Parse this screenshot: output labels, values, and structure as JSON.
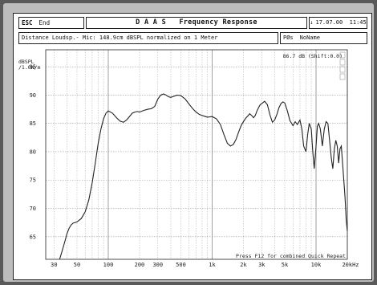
{
  "header": {
    "esc_key": "ESC",
    "end_label": "End",
    "title": "D A A S   Frequency Response",
    "date_time": "17.07.00  11:45",
    "description": "Distance Loudsp.- Mic: 148.9cm dBSPL normalized on 1 Meter",
    "file_code": "PØs",
    "file_name": "NoName"
  },
  "chart_data": {
    "type": "line",
    "title": "",
    "xlabel": "",
    "ylabel": "dBSPL\n/1.0W/m",
    "xscale": "log",
    "xlim": [
      25,
      20000
    ],
    "ylim": [
      61,
      98
    ],
    "grid": true,
    "x_tick_labels": [
      {
        "value": 30,
        "label": "30"
      },
      {
        "value": 50,
        "label": "50"
      },
      {
        "value": 100,
        "label": "100"
      },
      {
        "value": 200,
        "label": "200"
      },
      {
        "value": 300,
        "label": "300"
      },
      {
        "value": 500,
        "label": "500"
      },
      {
        "value": 1000,
        "label": "1k"
      },
      {
        "value": 2000,
        "label": "2k"
      },
      {
        "value": 3000,
        "label": "3k"
      },
      {
        "value": 5000,
        "label": "5k"
      },
      {
        "value": 10000,
        "label": "10k"
      },
      {
        "value": 20000,
        "label": "20kHz"
      }
    ],
    "y_ticks": [
      65,
      70,
      75,
      80,
      85,
      90,
      95
    ],
    "readout": "86.7 dB (Shift:0.0)",
    "footer_note": "Press F12 for combined Quick Repeat",
    "series": [
      {
        "x": [
          34,
          36,
          38,
          40,
          42,
          44,
          46,
          48,
          50,
          55,
          60,
          65,
          70,
          75,
          80,
          85,
          90,
          95,
          100,
          110,
          120,
          130,
          140,
          150,
          160,
          170,
          180,
          190,
          200,
          220,
          240,
          260,
          280,
          300,
          320,
          340,
          360,
          380,
          400,
          430,
          460,
          500,
          550,
          600,
          650,
          700,
          750,
          800,
          900,
          1000,
          1100,
          1200,
          1300,
          1400,
          1500,
          1600,
          1700,
          1800,
          1900,
          2000,
          2100,
          2200,
          2300,
          2400,
          2500,
          2600,
          2700,
          2800,
          2900,
          3000,
          3200,
          3400,
          3600,
          3800,
          4000,
          4200,
          4400,
          4600,
          4800,
          5000,
          5300,
          5600,
          6000,
          6300,
          6600,
          7000,
          7300,
          7600,
          8000,
          8300,
          8600,
          9000,
          9300,
          9600,
          10000,
          10300,
          10600,
          11000,
          11500,
          12000,
          12500,
          13000,
          13500,
          14000,
          14500,
          15000,
          15500,
          16000,
          16500,
          17000,
          17500,
          18000,
          18500,
          19000,
          19500,
          20000
        ],
        "y": [
          61.0,
          62.5,
          64.0,
          65.5,
          66.5,
          67.1,
          67.4,
          67.5,
          67.6,
          68.2,
          69.4,
          71.5,
          74.5,
          78.0,
          81.5,
          84.0,
          85.8,
          86.8,
          87.2,
          86.8,
          86.0,
          85.4,
          85.2,
          85.6,
          86.2,
          86.8,
          87.0,
          87.1,
          87.0,
          87.3,
          87.5,
          87.6,
          88.0,
          89.3,
          90.0,
          90.2,
          90.0,
          89.7,
          89.6,
          89.8,
          90.0,
          89.9,
          89.3,
          88.4,
          87.6,
          87.0,
          86.6,
          86.4,
          86.1,
          86.2,
          85.8,
          84.8,
          83.0,
          81.5,
          81.0,
          81.3,
          82.2,
          83.5,
          84.6,
          85.3,
          85.9,
          86.3,
          86.7,
          86.4,
          86.0,
          86.4,
          87.2,
          87.8,
          88.3,
          88.5,
          88.9,
          88.3,
          86.5,
          85.2,
          85.6,
          86.6,
          87.8,
          88.5,
          88.8,
          88.6,
          87.2,
          85.5,
          84.6,
          85.3,
          84.8,
          85.6,
          84.0,
          81.0,
          80.0,
          83.0,
          85.0,
          84.0,
          80.0,
          77.0,
          81.0,
          84.5,
          85.0,
          84.0,
          81.0,
          84.0,
          85.3,
          85.0,
          82.0,
          79.0,
          77.0,
          80.5,
          82.0,
          81.0,
          78.0,
          80.5,
          81.0,
          78.0,
          75.0,
          72.0,
          68.0,
          66.0
        ]
      }
    ]
  }
}
